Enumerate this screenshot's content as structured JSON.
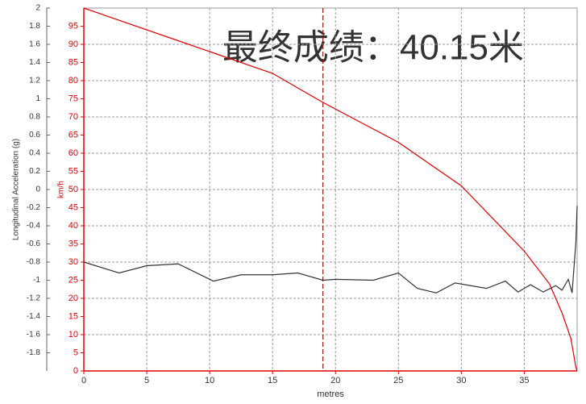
{
  "chart_data": {
    "type": "line",
    "annotation": "最终成绩：40.15米",
    "xlabel": "metres",
    "ylabel": "Longitudinal Acceleration (g)",
    "y2label": "km/h",
    "xlim": [
      0,
      39.2
    ],
    "xticks": [
      0,
      5,
      10,
      15,
      20,
      25,
      30,
      35
    ],
    "ylim": [
      -2,
      2
    ],
    "yticks": [
      2,
      1.8,
      1.6,
      1.4,
      1.2,
      1,
      0.8,
      0.6,
      0.4,
      0.2,
      0,
      -0.2,
      -0.4,
      -0.6,
      -0.8,
      -1,
      -1.2,
      -1.4,
      -1.6,
      -1.8
    ],
    "y2lim": [
      0,
      100
    ],
    "y2ticks": [
      0,
      5,
      10,
      15,
      20,
      25,
      30,
      35,
      40,
      45,
      50,
      55,
      60,
      65,
      70,
      75,
      80,
      85,
      90,
      95
    ],
    "grid": true,
    "marker_x": 19,
    "series": [
      {
        "name": "km/h",
        "color": "#e00000",
        "axis": "y2",
        "x": [
          0,
          7.5,
          10,
          15,
          19,
          25,
          30,
          35,
          37,
          38,
          38.7,
          39.1,
          39.2
        ],
        "values": [
          100,
          91,
          88,
          82,
          74,
          63,
          51,
          33,
          24,
          16,
          9,
          1,
          0
        ]
      },
      {
        "name": "Longitudinal Acceleration (g)",
        "color": "#333333",
        "x": [
          0,
          2.8,
          5,
          7.5,
          10.3,
          12.5,
          15,
          17,
          19,
          20,
          23,
          25,
          26.5,
          28,
          29.5,
          32,
          33.5,
          34.5,
          35.5,
          36.5,
          37.5,
          38,
          38.5,
          38.8,
          39.1,
          39.2
        ],
        "values": [
          -0.8,
          -0.92,
          -0.84,
          -0.82,
          -1.01,
          -0.94,
          -0.94,
          -0.92,
          -1.0,
          -0.99,
          -1.0,
          -0.92,
          -1.09,
          -1.14,
          -1.03,
          -1.09,
          -1.01,
          -1.13,
          -1.05,
          -1.13,
          -1.06,
          -1.11,
          -0.99,
          -1.14,
          -0.58,
          -0.18
        ]
      }
    ]
  }
}
